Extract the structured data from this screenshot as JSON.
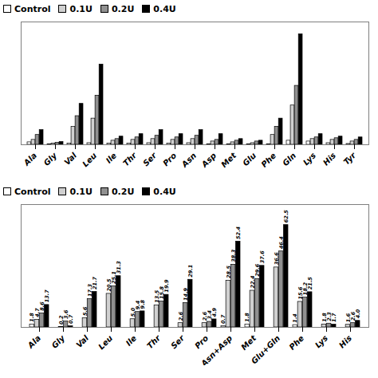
{
  "chart_data": [
    {
      "type": "bar",
      "categories": [
        "Ala",
        "Gly",
        "Val",
        "Leu",
        "Ile",
        "Thr",
        "Ser",
        "Pro",
        "Asn",
        "Asp",
        "Met",
        "Glu",
        "Phe",
        "Gln",
        "Lys",
        "His",
        "Tyr"
      ],
      "series": [
        {
          "name": "Control",
          "color": "#ffffff",
          "values": [
            0.3,
            0.05,
            0.15,
            0.2,
            0.15,
            0.15,
            0.2,
            0.15,
            0.2,
            0.05,
            0.05,
            0.05,
            0.05,
            0.5,
            0.4,
            0.2,
            0.1
          ]
        },
        {
          "name": "0.1U",
          "color": "#d0d0d0",
          "values": [
            0.6,
            0.15,
            2.2,
            3.2,
            0.5,
            0.6,
            0.7,
            0.6,
            0.7,
            0.4,
            0.3,
            0.2,
            1.2,
            4.8,
            0.7,
            0.6,
            0.4
          ]
        },
        {
          "name": "0.2U",
          "color": "#909090",
          "values": [
            1.2,
            0.25,
            3.5,
            6.0,
            0.7,
            0.9,
            1.1,
            0.9,
            1.1,
            0.6,
            0.5,
            0.4,
            2.2,
            7.2,
            0.9,
            0.8,
            0.6
          ]
        },
        {
          "name": "0.4U",
          "color": "#000000",
          "values": [
            1.8,
            0.35,
            5.0,
            9.8,
            1.0,
            1.3,
            1.8,
            1.3,
            1.8,
            1.3,
            0.7,
            0.5,
            3.2,
            13.5,
            1.3,
            1.0,
            0.9
          ]
        }
      ],
      "ylim": [
        0,
        15
      ],
      "tick_labels": "x",
      "legend": "upper left"
    },
    {
      "type": "bar",
      "categories": [
        "Ala",
        "Gly",
        "Val",
        "Leu",
        "Ile",
        "Thr",
        "Ser",
        "Pro",
        "Asn+Asp",
        "Met",
        "Glu+Gln",
        "Phe",
        "Lys",
        "His"
      ],
      "series": [
        {
          "name": "Control",
          "color": "#ffffff",
          "values": [
            1.8,
            0.0,
            0.0,
            0.0,
            0.0,
            0.0,
            0.0,
            0.0,
            0.7,
            1.8,
            0.0,
            1.4,
            0.0,
            0.0
          ],
          "value_labels": [
            "1.8",
            null,
            null,
            null,
            null,
            null,
            null,
            null,
            "0.7",
            "1.8",
            null,
            "1.4",
            null,
            null
          ]
        },
        {
          "name": "0.1U",
          "color": "#d0d0d0",
          "values": [
            4.7,
            0.2,
            5.6,
            20.5,
            5.0,
            13.5,
            2.6,
            2.6,
            28.5,
            22.4,
            36.6,
            15.6,
            1.8,
            1.6
          ],
          "value_labels": [
            "4.7",
            "0.2",
            "5.6",
            "20.5",
            "5.0",
            "13.5",
            "2.6",
            "2.6",
            "28.5",
            "22.4",
            "36.6",
            "15.6",
            "1.8",
            "1.6"
          ]
        },
        {
          "name": "0.2U",
          "color": "#909090",
          "values": [
            8.6,
            3.6,
            17.3,
            25.1,
            9.4,
            15.8,
            14.9,
            3.4,
            38.3,
            29.6,
            46.4,
            18.2,
            2.3,
            2.6
          ],
          "value_labels": [
            "8.6",
            "3.6",
            "17.3",
            "25.1",
            "9.4",
            "15.8",
            "14.9",
            "3.4",
            "38.3",
            "29.6",
            "46.4",
            "18.2",
            "2.3",
            "2.6"
          ]
        },
        {
          "name": "0.4U",
          "color": "#000000",
          "values": [
            13.7,
            0.7,
            21.7,
            31.3,
            9.8,
            19.9,
            29.1,
            4.9,
            52.4,
            37.6,
            62.5,
            21.5,
            1.7,
            4.0
          ],
          "value_labels": [
            "13.7",
            "0.7",
            "21.7",
            "31.3",
            "9.8",
            "19.9",
            "29.1",
            "4.9",
            "52.4",
            "37.6",
            "62.5",
            "21.5",
            "1.7",
            "4.0"
          ]
        }
      ],
      "ylim": [
        0,
        75
      ],
      "tick_labels": "x",
      "legend": "upper left",
      "data_labels": true
    }
  ]
}
